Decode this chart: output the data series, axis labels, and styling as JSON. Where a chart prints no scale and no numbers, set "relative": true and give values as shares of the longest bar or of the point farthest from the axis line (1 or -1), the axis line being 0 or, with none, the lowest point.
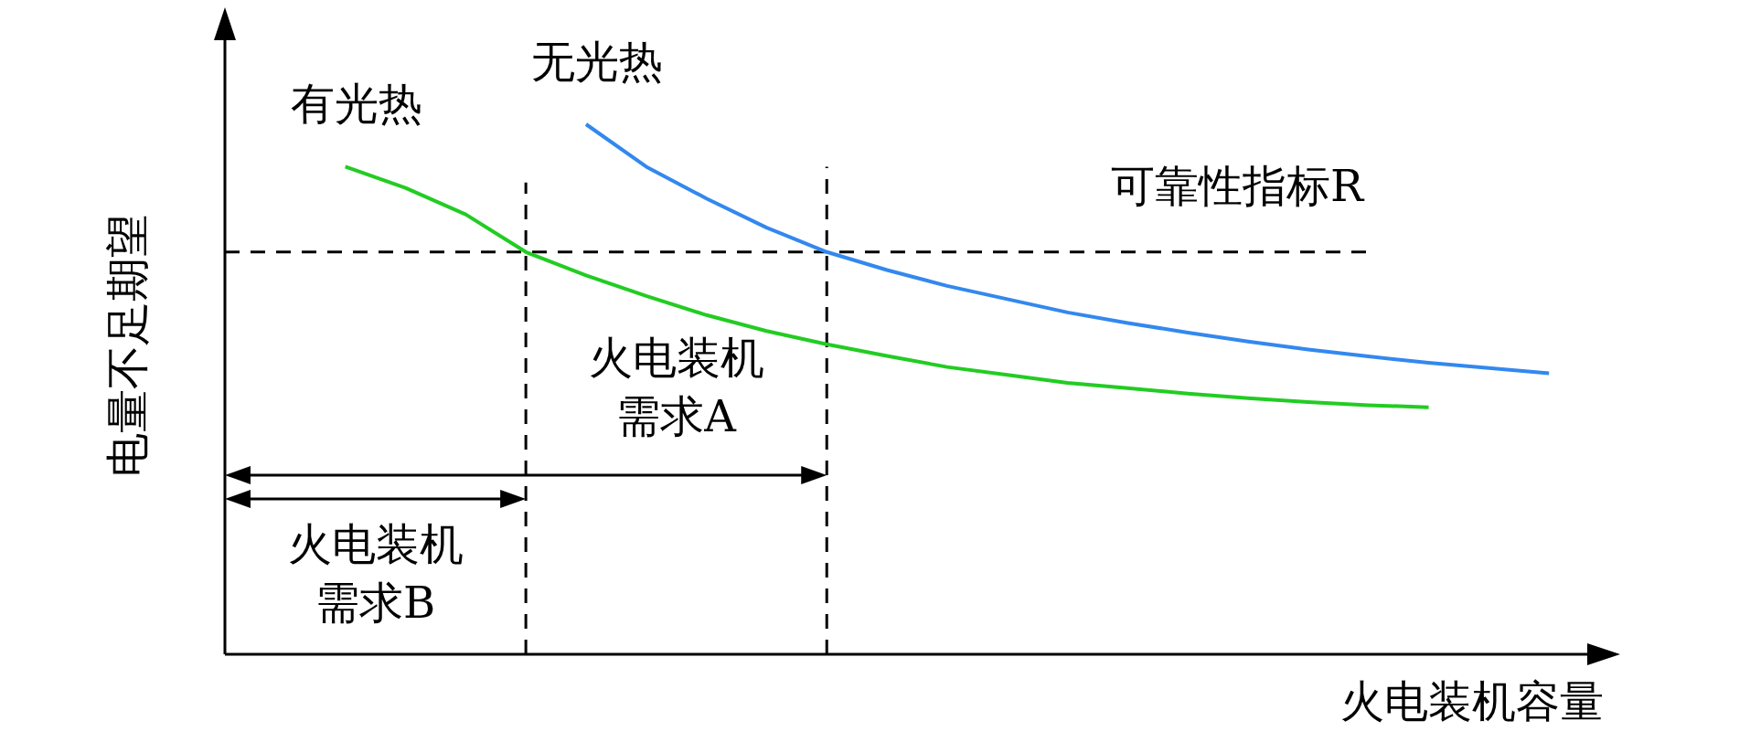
{
  "chart_data": {
    "type": "line",
    "relative": true,
    "xlabel": "火电装机容量",
    "ylabel": "电量不足期望",
    "categories": [
      null,
      null,
      null,
      null,
      null,
      null,
      null,
      null,
      null,
      null,
      null,
      null,
      null,
      null,
      null,
      null,
      null,
      null,
      null,
      null,
      null,
      null,
      null,
      null
    ],
    "legend": false,
    "grid": false,
    "marker": "none",
    "line_style": "solid",
    "series": [
      {
        "name": "有光热",
        "color": "#22cc22",
        "values": [
          null,
          null,
          0.92,
          0.88,
          0.83,
          0.759,
          0.715,
          0.676,
          0.64,
          0.61,
          0.585,
          0.563,
          0.542,
          0.527,
          0.512,
          0.502,
          0.492,
          0.483,
          0.476,
          0.47,
          0.466,
          null,
          null,
          null
        ]
      },
      {
        "name": "无光热",
        "color": "#3388ee",
        "values": [
          null,
          null,
          null,
          null,
          null,
          null,
          1.0,
          0.92,
          0.86,
          0.805,
          0.759,
          0.725,
          0.695,
          0.67,
          0.645,
          0.625,
          0.607,
          0.59,
          0.575,
          0.562,
          0.55,
          0.54,
          0.53,
          null
        ]
      }
    ],
    "ref_lines": [
      {
        "axis": "y",
        "value": 0.759,
        "label": "可靠性指标R",
        "line_style": "dashed",
        "color": "#000000"
      }
    ],
    "annotations": [
      "火电装机需求A",
      "火电装机需求B"
    ]
  }
}
